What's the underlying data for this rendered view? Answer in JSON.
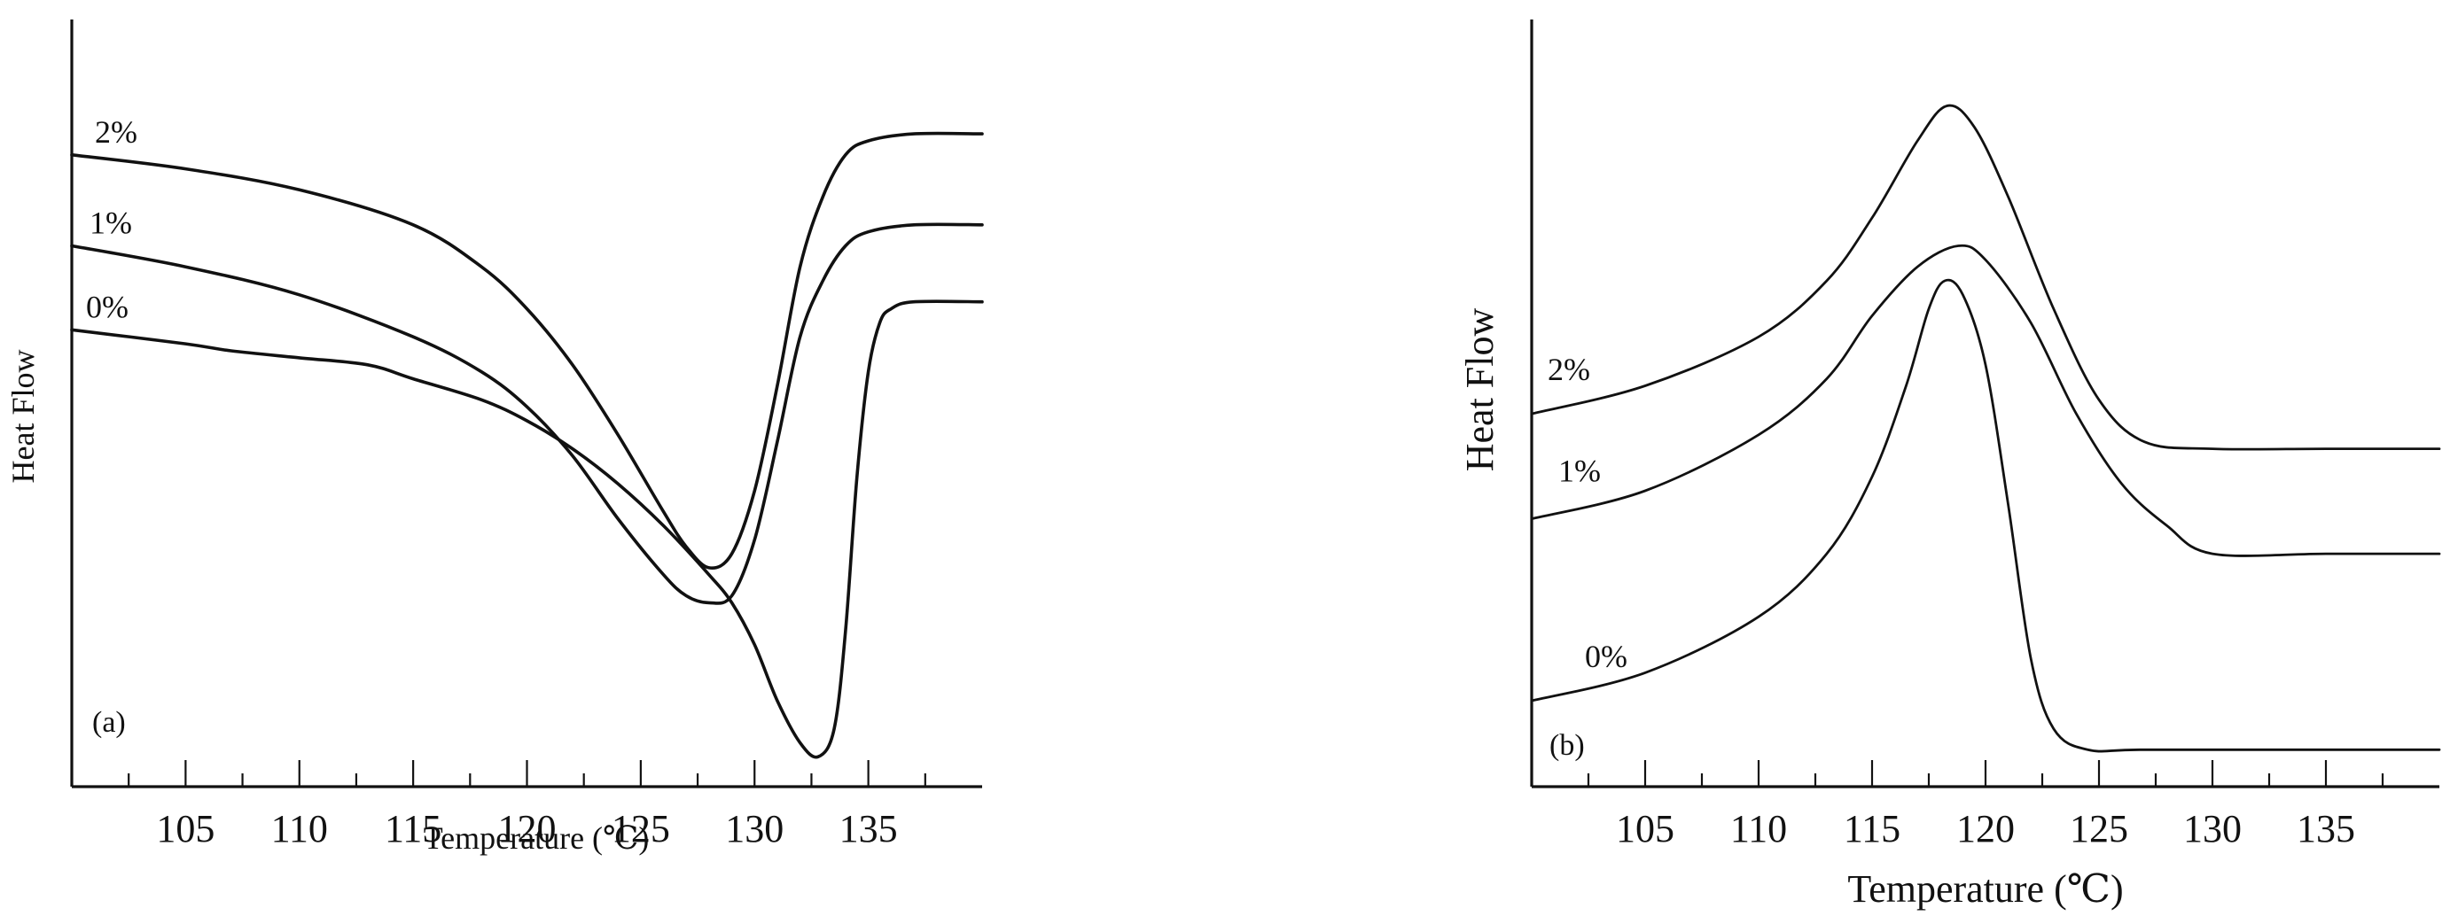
{
  "chart_data": [
    {
      "type": "line",
      "panel_label": "(a)",
      "xlabel": "Temperature (℃)",
      "ylabel": "Heat Flow",
      "xlim": [
        100,
        140
      ],
      "xticks": [
        105,
        110,
        115,
        120,
        125,
        130,
        135
      ],
      "x_minor_ticks": [
        100,
        102.5,
        107.5,
        112.5,
        117.5,
        122.5,
        127.5,
        132.5,
        137.5
      ],
      "y_units": "arbitrary (no tick labels)",
      "ylim": [
        0,
        1
      ],
      "series": [
        {
          "name": "2%",
          "points": [
            [
              100,
              0.88
            ],
            [
              105,
              0.86
            ],
            [
              110,
              0.83
            ],
            [
              115,
              0.78
            ],
            [
              118,
              0.72
            ],
            [
              120,
              0.66
            ],
            [
              122,
              0.58
            ],
            [
              124,
              0.48
            ],
            [
              126,
              0.37
            ],
            [
              127,
              0.32
            ],
            [
              128,
              0.29
            ],
            [
              129,
              0.31
            ],
            [
              130,
              0.4
            ],
            [
              131,
              0.55
            ],
            [
              132,
              0.72
            ],
            [
              133,
              0.82
            ],
            [
              134,
              0.88
            ],
            [
              135,
              0.9
            ],
            [
              137,
              0.91
            ],
            [
              140,
              0.91
            ]
          ]
        },
        {
          "name": "1%",
          "points": [
            [
              100,
              0.75
            ],
            [
              105,
              0.72
            ],
            [
              110,
              0.68
            ],
            [
              115,
              0.62
            ],
            [
              118,
              0.57
            ],
            [
              120,
              0.52
            ],
            [
              122,
              0.45
            ],
            [
              124,
              0.36
            ],
            [
              126,
              0.28
            ],
            [
              127,
              0.25
            ],
            [
              128,
              0.24
            ],
            [
              129,
              0.25
            ],
            [
              130,
              0.33
            ],
            [
              131,
              0.47
            ],
            [
              132,
              0.62
            ],
            [
              133,
              0.7
            ],
            [
              134,
              0.75
            ],
            [
              135,
              0.77
            ],
            [
              137,
              0.78
            ],
            [
              140,
              0.78
            ]
          ]
        },
        {
          "name": "0%",
          "points": [
            [
              100,
              0.63
            ],
            [
              105,
              0.61
            ],
            [
              107,
              0.6
            ],
            [
              110,
              0.59
            ],
            [
              113,
              0.58
            ],
            [
              115,
              0.56
            ],
            [
              118,
              0.53
            ],
            [
              120,
              0.5
            ],
            [
              122,
              0.46
            ],
            [
              124,
              0.41
            ],
            [
              126,
              0.35
            ],
            [
              128,
              0.28
            ],
            [
              129,
              0.24
            ],
            [
              130,
              0.18
            ],
            [
              131,
              0.1
            ],
            [
              132,
              0.04
            ],
            [
              132.8,
              0.02
            ],
            [
              133.5,
              0.06
            ],
            [
              134,
              0.2
            ],
            [
              134.5,
              0.42
            ],
            [
              135,
              0.57
            ],
            [
              135.5,
              0.64
            ],
            [
              136,
              0.66
            ],
            [
              137,
              0.67
            ],
            [
              140,
              0.67
            ]
          ]
        }
      ]
    },
    {
      "type": "line",
      "panel_label": "(b)",
      "xlabel": "Temperature (℃)",
      "ylabel": "Heat Flow",
      "xlim": [
        100,
        140
      ],
      "xticks": [
        105,
        110,
        115,
        120,
        125,
        130,
        135
      ],
      "x_minor_ticks": [
        100,
        102.5,
        107.5,
        112.5,
        117.5,
        122.5,
        127.5,
        132.5,
        137.5
      ],
      "y_units": "arbitrary (no tick labels)",
      "ylim": [
        0,
        1
      ],
      "series": [
        {
          "name": "2%",
          "points": [
            [
              100,
              0.51
            ],
            [
              105,
              0.55
            ],
            [
              110,
              0.62
            ],
            [
              113,
              0.7
            ],
            [
              115,
              0.79
            ],
            [
              117,
              0.9
            ],
            [
              118.3,
              0.95
            ],
            [
              119.5,
              0.92
            ],
            [
              121,
              0.82
            ],
            [
              123,
              0.66
            ],
            [
              125,
              0.53
            ],
            [
              127,
              0.47
            ],
            [
              130,
              0.46
            ],
            [
              135,
              0.46
            ],
            [
              140,
              0.46
            ]
          ]
        },
        {
          "name": "1%",
          "points": [
            [
              100,
              0.36
            ],
            [
              105,
              0.4
            ],
            [
              110,
              0.48
            ],
            [
              113,
              0.56
            ],
            [
              115,
              0.65
            ],
            [
              117,
              0.72
            ],
            [
              118.8,
              0.75
            ],
            [
              120,
              0.73
            ],
            [
              122,
              0.64
            ],
            [
              124,
              0.51
            ],
            [
              126,
              0.41
            ],
            [
              128,
              0.35
            ],
            [
              130,
              0.31
            ],
            [
              135,
              0.31
            ],
            [
              140,
              0.31
            ]
          ]
        },
        {
          "name": "0%",
          "points": [
            [
              100,
              0.1
            ],
            [
              105,
              0.14
            ],
            [
              110,
              0.22
            ],
            [
              113,
              0.31
            ],
            [
              115,
              0.42
            ],
            [
              116.5,
              0.55
            ],
            [
              117.5,
              0.66
            ],
            [
              118.2,
              0.7
            ],
            [
              119,
              0.68
            ],
            [
              120,
              0.58
            ],
            [
              121,
              0.38
            ],
            [
              122,
              0.16
            ],
            [
              123,
              0.06
            ],
            [
              124.5,
              0.03
            ],
            [
              127,
              0.03
            ],
            [
              135,
              0.03
            ],
            [
              140,
              0.03
            ]
          ]
        }
      ]
    }
  ]
}
